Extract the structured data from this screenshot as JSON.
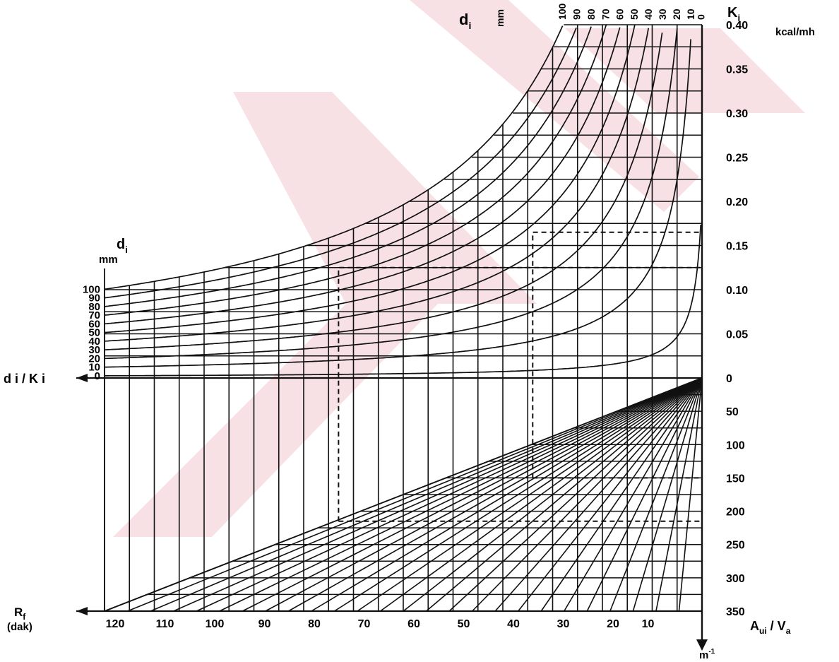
{
  "colors": {
    "ink": "#111111",
    "watermark": "#f2c9cf",
    "background": "#ffffff"
  },
  "chart_data": {
    "type": "line",
    "title": "",
    "top_quadrant": {
      "curve_family_label": "d",
      "curve_family_subscript": "i",
      "curve_family_unit": "mm",
      "curve_family_values": [
        "100",
        "90",
        "80",
        "70",
        "60",
        "50",
        "40",
        "30",
        "20",
        "10",
        "0"
      ],
      "right_axis_label": "K",
      "right_axis_subscript": "i",
      "right_axis_unit": "kcal/mh",
      "right_axis_ticks": [
        "0.40",
        "0.35",
        "0.30",
        "0.25",
        "0.20",
        "0.15",
        "0.10",
        "0.05",
        "0"
      ],
      "right_axis_range": [
        0,
        0.4
      ]
    },
    "left_scale": {
      "label": "d",
      "subscript": "i",
      "unit": "mm",
      "ticks": [
        "100",
        "90",
        "80",
        "70",
        "60",
        "50",
        "40",
        "30",
        "20",
        "10",
        "0"
      ],
      "axis_label": "d i / K i"
    },
    "bottom_quadrant": {
      "right_axis_ticks": [
        "0",
        "50",
        "100",
        "150",
        "200",
        "250",
        "300",
        "350"
      ],
      "right_axis_range": [
        0,
        350
      ],
      "right_axis_label": "A",
      "right_axis_subscript": "ui",
      "right_axis_suffix": " / V",
      "right_axis_suffix_subscript": "a",
      "right_axis_unit": "m",
      "right_axis_unit_sup": "-1"
    },
    "x_axis": {
      "label": "R",
      "label_subscript": "f",
      "unit": "(dak)",
      "ticks": [
        "120",
        "110",
        "100",
        "90",
        "80",
        "70",
        "60",
        "50",
        "40",
        "30",
        "20",
        "10"
      ],
      "range": [
        0,
        120
      ]
    },
    "example_paths": [
      {
        "R_f": 73,
        "A_ui_V_a": 215,
        "K_i": 0.125
      },
      {
        "R_f": 34,
        "A_ui_V_a": 150,
        "K_i": 0.165
      }
    ]
  }
}
